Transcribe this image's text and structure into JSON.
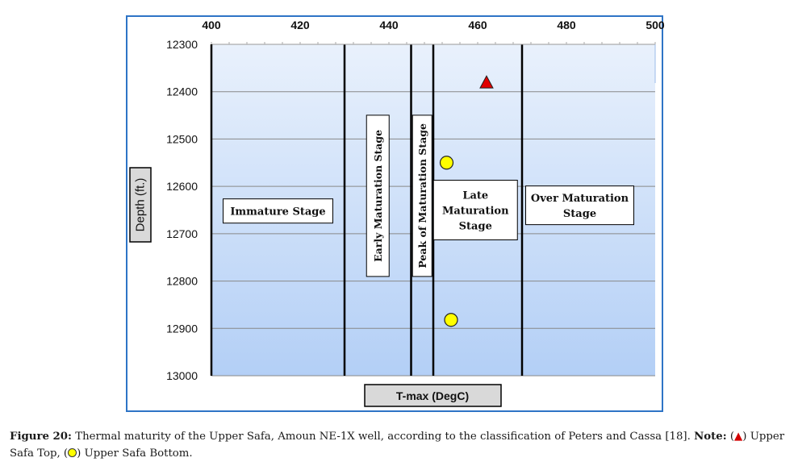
{
  "chart_data": {
    "type": "scatter",
    "xlabel": "T-max (DegC)",
    "ylabel": "Depth (ft.)",
    "xlim": [
      400,
      500
    ],
    "ylim": [
      12300,
      13000
    ],
    "y_inverted": true,
    "x_ticks": [
      400,
      420,
      440,
      460,
      480,
      500
    ],
    "x_tick_labels": [
      "400",
      "420",
      "440",
      "460",
      "480",
      "500"
    ],
    "y_ticks": [
      12300,
      12400,
      12500,
      12600,
      12700,
      12800,
      12900,
      13000
    ],
    "y_tick_labels": [
      "12300",
      "12400",
      "12500",
      "12600",
      "12700",
      "12800",
      "12900",
      "13000"
    ],
    "x_axis_position": "top",
    "grid": "horizontal",
    "stage_boundaries": [
      430,
      445,
      450,
      470
    ],
    "stages": [
      {
        "name": "Immature Stage",
        "x": 415,
        "y": 12652,
        "orientation": "horizontal"
      },
      {
        "name": "Early Maturation Stage",
        "x": 437.5,
        "y": 12620,
        "orientation": "vertical"
      },
      {
        "name": "Peak of Maturation Stage",
        "x": 447.5,
        "y": 12620,
        "orientation": "vertical"
      },
      {
        "name": "Late Maturation Stage",
        "x": 459.5,
        "y": 12650,
        "orientation": "horizontal"
      },
      {
        "name": "Over Maturation Stage",
        "x": 483,
        "y": 12640,
        "orientation": "horizontal"
      }
    ],
    "series": [
      {
        "marker": "triangle",
        "color": "#e00000",
        "points": [
          {
            "x": 462,
            "y": 12382
          }
        ]
      },
      {
        "marker": "circle",
        "color": "#ffff00",
        "points": [
          {
            "x": 453,
            "y": 12550
          },
          {
            "x": 454,
            "y": 12882
          }
        ]
      }
    ]
  },
  "caption": {
    "label": "Figure 20:",
    "text_1": "Thermal maturity of the Upper Safa, Amoun NE-1X well, according to the classification of Peters and Cassa [18].",
    "note_label": "Note:",
    "triangle_symbol": "▲",
    "text_2": "Upper Safa Top,",
    "circle_text": "Upper Safa Bottom."
  }
}
